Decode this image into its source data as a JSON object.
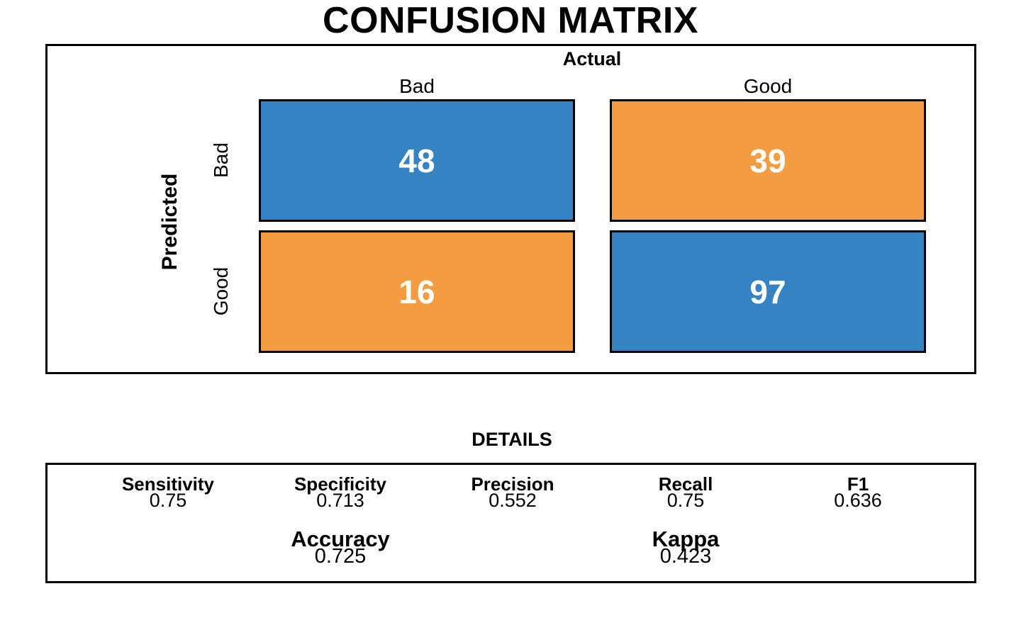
{
  "title": "CONFUSION MATRIX",
  "colors": {
    "cell_blue": "#3583C2",
    "cell_orange": "#F39C42",
    "cell_text": "#FFFFFF",
    "line": "#000000"
  },
  "matrix": {
    "actual_axis_label": "Actual",
    "predicted_axis_label": "Predicted",
    "col_labels": [
      "Bad",
      "Good"
    ],
    "row_labels": [
      "Bad",
      "Good"
    ],
    "cells": [
      {
        "row": "Bad",
        "col": "Bad",
        "value": "48",
        "color": "#3583C2"
      },
      {
        "row": "Bad",
        "col": "Good",
        "value": "39",
        "color": "#F39C42"
      },
      {
        "row": "Good",
        "col": "Bad",
        "value": "16",
        "color": "#F39C42"
      },
      {
        "row": "Good",
        "col": "Good",
        "value": "97",
        "color": "#3583C2"
      }
    ]
  },
  "details": {
    "title": "DETAILS",
    "stats": [
      {
        "label": "Sensitivity",
        "value": "0.75"
      },
      {
        "label": "Specificity",
        "value": "0.713"
      },
      {
        "label": "Precision",
        "value": "0.552"
      },
      {
        "label": "Recall",
        "value": "0.75"
      },
      {
        "label": "F1",
        "value": "0.636"
      }
    ],
    "overall": [
      {
        "label": "Accuracy",
        "value": "0.725"
      },
      {
        "label": "Kappa",
        "value": "0.423"
      }
    ]
  },
  "chart_data": {
    "type": "heatmap",
    "title": "CONFUSION MATRIX",
    "x_axis_label": "Actual",
    "y_axis_label": "Predicted",
    "x_categories": [
      "Bad",
      "Good"
    ],
    "y_categories": [
      "Bad",
      "Good"
    ],
    "values": [
      [
        48,
        39
      ],
      [
        16,
        97
      ]
    ],
    "cell_colors": [
      [
        "#3583C2",
        "#F39C42"
      ],
      [
        "#F39C42",
        "#3583C2"
      ]
    ],
    "legend": "none",
    "annotations": [
      "DETAILS"
    ],
    "metrics": {
      "Sensitivity": 0.75,
      "Specificity": 0.713,
      "Precision": 0.552,
      "Recall": 0.75,
      "F1": 0.636,
      "Accuracy": 0.725,
      "Kappa": 0.423
    }
  }
}
